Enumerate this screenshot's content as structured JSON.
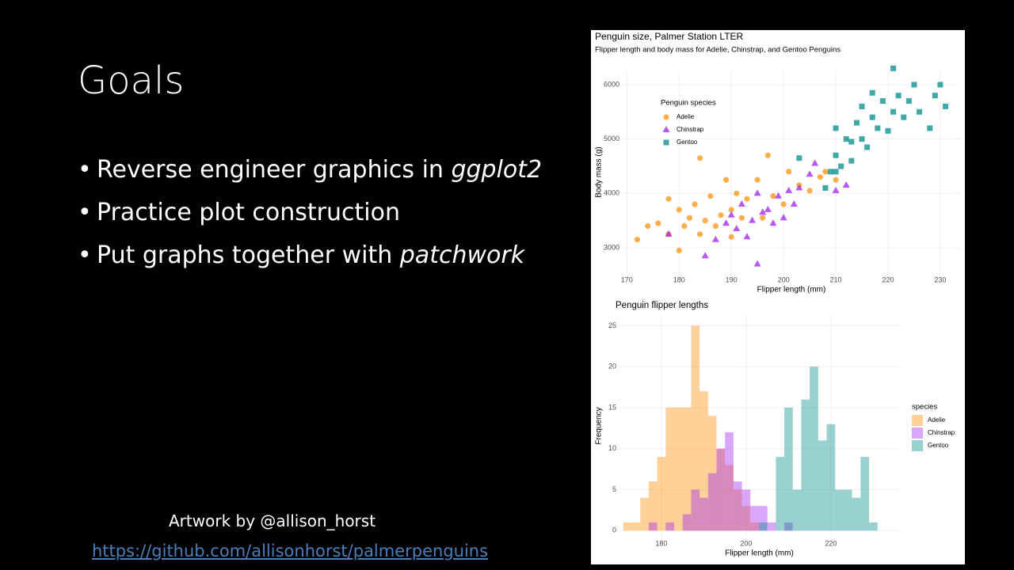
{
  "slide": {
    "title": "Goals",
    "bullets": [
      [
        {
          "text": "Reverse engineer graphics in "
        },
        {
          "text": "ggplot2",
          "italic": true
        }
      ],
      [
        {
          "text": "Practice plot construction"
        }
      ],
      [
        {
          "text": "Put graphs together with "
        },
        {
          "text": "patchwork",
          "italic": true
        }
      ]
    ],
    "credit": "Artwork by @allison_horst",
    "link": "https://github.com/allisonhorst/palmerpenguins"
  },
  "chart_data": [
    {
      "type": "scatter",
      "title": "Penguin size, Palmer Station LTER",
      "subtitle": "Flipper length and body mass for Adelie, Chinstrap, and Gentoo Penguins",
      "x_label": "Flipper length (mm)",
      "y_label": "Body mass (g)",
      "legend_title": "Penguin species",
      "legend": "top-left",
      "grid": true,
      "xlim": [
        169.2,
        233.8
      ],
      "ylim": [
        2534,
        6247
      ],
      "xticks": [
        170,
        180,
        190,
        200,
        210,
        220,
        230
      ],
      "yticks": [
        3000,
        4000,
        5000,
        6000
      ],
      "series": [
        {
          "name": "Adelie",
          "color": "#ff8c00",
          "marker": "circle",
          "x": [
            172,
            174,
            176,
            178,
            178,
            180,
            180,
            181,
            182,
            183,
            184,
            184,
            185,
            186,
            187,
            188,
            189,
            190,
            190,
            191,
            192,
            193,
            195,
            196,
            197,
            198,
            200,
            201,
            203,
            208,
            210,
            207,
            205
          ],
          "values": [
            3150,
            3400,
            3450,
            3900,
            3250,
            3700,
            2950,
            3400,
            3550,
            3800,
            4650,
            3250,
            3500,
            3950,
            3400,
            3600,
            4250,
            3700,
            3200,
            4000,
            3550,
            3900,
            4250,
            3550,
            4700,
            3950,
            3800,
            4400,
            4150,
            4400,
            4250,
            4300,
            4050
          ]
        },
        {
          "name": "Chinstrap",
          "color": "#a020f0",
          "marker": "triangle",
          "x": [
            178,
            185,
            187,
            189,
            190,
            191,
            192,
            193,
            194,
            195,
            195,
            196,
            197,
            198,
            199,
            200,
            201,
            202,
            203,
            205,
            206,
            210,
            212
          ],
          "values": [
            3250,
            2850,
            3150,
            3450,
            3600,
            3350,
            3800,
            3200,
            3500,
            2700,
            4000,
            3650,
            3700,
            3450,
            3950,
            3550,
            4050,
            3800,
            4100,
            4350,
            4550,
            4050,
            4150
          ]
        },
        {
          "name": "Gentoo",
          "color": "#008b8b",
          "marker": "square",
          "x": [
            203,
            208,
            209,
            210,
            210,
            211,
            212,
            213,
            214,
            215,
            215,
            216,
            217,
            218,
            219,
            220,
            221,
            222,
            223,
            224,
            225,
            226,
            228,
            229,
            230,
            231,
            221,
            213,
            217,
            210
          ],
          "values": [
            4650,
            4100,
            4400,
            4700,
            5200,
            4500,
            5000,
            4600,
            5300,
            5000,
            5600,
            4850,
            5400,
            5200,
            5700,
            5150,
            5500,
            5800,
            5400,
            5700,
            6000,
            5500,
            5200,
            5800,
            6000,
            5600,
            6300,
            4950,
            5850,
            4400
          ]
        }
      ]
    },
    {
      "type": "histogram",
      "title": "Penguin flipper lengths",
      "x_label": "Flipper length (mm)",
      "y_label": "Frequency",
      "legend_title": "species",
      "legend": "right",
      "grid": true,
      "xlim": [
        170.1,
        236.1
      ],
      "ylim": [
        -0.75,
        26.3
      ],
      "xticks": [
        180,
        200,
        220
      ],
      "yticks": [
        0,
        5,
        10,
        15,
        20,
        25
      ],
      "bins": [
        171,
        173,
        175,
        177,
        179,
        181,
        183,
        185,
        187,
        189,
        191,
        193,
        195,
        197,
        199,
        201,
        203,
        205,
        207,
        209,
        211,
        213,
        215,
        217,
        219,
        221,
        223,
        225,
        227,
        229,
        231,
        233
      ],
      "series": [
        {
          "name": "Adelie",
          "color": "#ff8c00",
          "values": [
            1,
            1,
            4,
            6,
            9,
            15,
            15,
            15,
            25,
            17,
            14,
            10,
            8,
            5,
            3,
            1,
            0,
            0,
            0,
            0,
            0,
            0,
            0,
            0,
            0,
            0,
            0,
            0,
            0,
            0,
            0
          ]
        },
        {
          "name": "Chinstrap",
          "color": "#a020f0",
          "values": [
            0,
            0,
            0,
            1,
            0,
            1,
            0,
            2,
            5,
            4,
            7,
            10,
            12,
            6,
            5,
            3,
            3,
            1,
            0,
            1,
            0,
            0,
            0,
            0,
            0,
            0,
            0,
            0,
            0,
            0,
            0
          ]
        },
        {
          "name": "Gentoo",
          "color": "#008b8b",
          "values": [
            0,
            0,
            0,
            0,
            0,
            0,
            0,
            0,
            0,
            0,
            0,
            0,
            0,
            0,
            0,
            0,
            1,
            0,
            9,
            15,
            5,
            16,
            20,
            11,
            13,
            5,
            5,
            4,
            9,
            1,
            0
          ]
        }
      ]
    }
  ]
}
